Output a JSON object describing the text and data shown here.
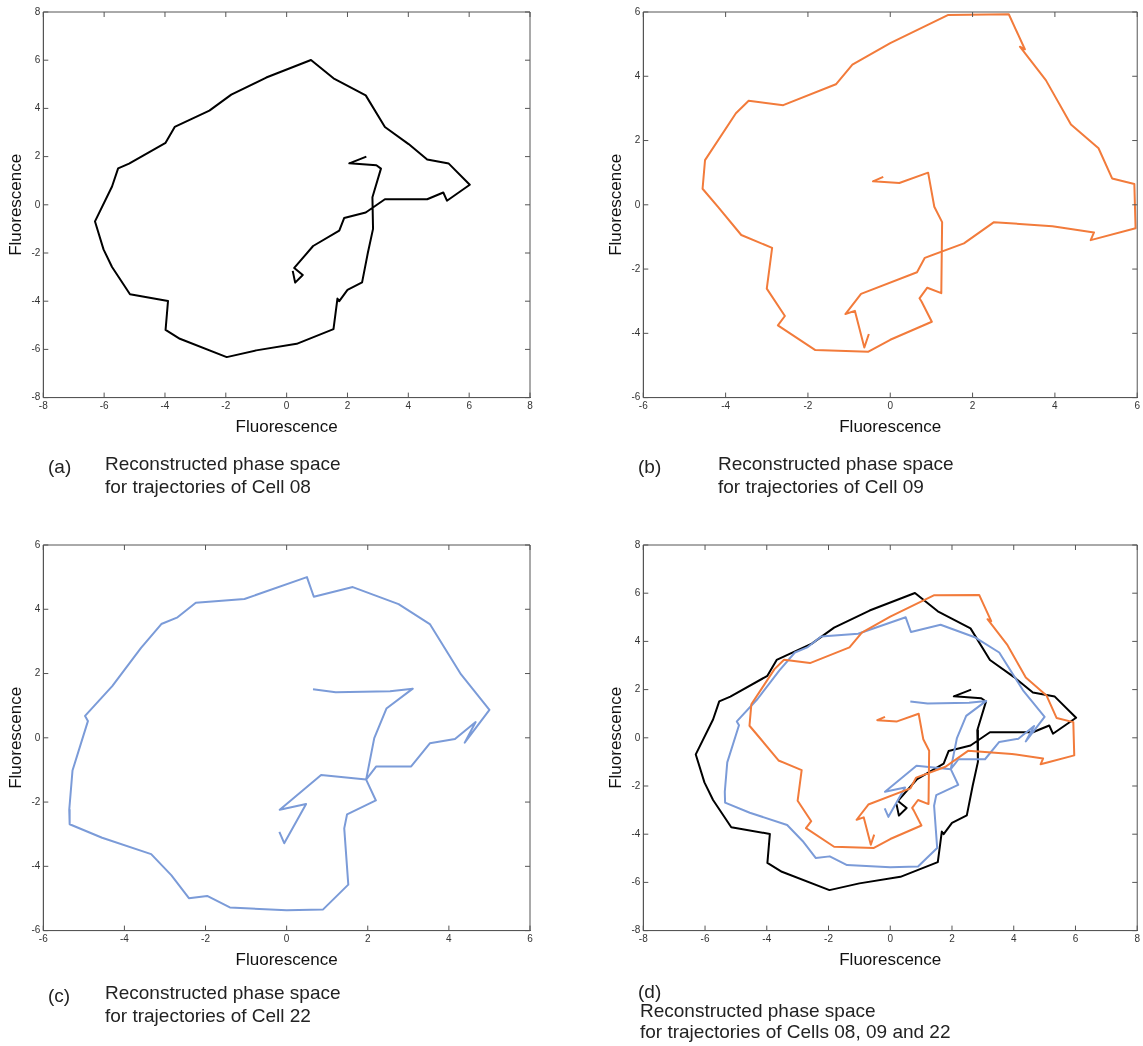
{
  "chart_data": [
    {
      "type": "line",
      "xlabel": "Fluorescence",
      "ylabel": "Fluorescence",
      "xlim": [
        -8,
        8
      ],
      "ylim": [
        -8,
        8
      ],
      "xticks": [
        -8,
        -6,
        -4,
        -2,
        0,
        2,
        4,
        6,
        8
      ],
      "yticks": [
        -8,
        -6,
        -4,
        -2,
        0,
        2,
        4,
        6,
        8
      ],
      "grid": false,
      "annotations": [
        "(a)",
        "Reconstructed phase space",
        "for trajectories of Cell 08"
      ],
      "series": [
        {
          "color": "#000000",
          "x": [
            2.62,
            2.06,
            2.95,
            3.1,
            2.82,
            2.84,
            2.67,
            2.48,
            2.0,
            1.73,
            1.67,
            1.54,
            0.33,
            -1.0,
            -1.97,
            -3.51,
            -3.98,
            -3.9,
            -5.15,
            -5.74,
            -6.02,
            -6.3,
            -5.74,
            -5.54,
            -5.18,
            -3.98,
            -3.68,
            -2.54,
            -1.82,
            -0.67,
            0.8,
            1.54,
            2.6,
            3.23,
            4.01,
            4.62,
            5.33,
            6.02,
            5.27,
            5.15,
            4.62,
            3.23,
            2.6,
            1.89,
            1.73,
            0.87,
            0.25,
            0.53,
            0.28,
            0.2
          ],
          "values": [
            2.0,
            1.72,
            1.64,
            1.5,
            0.31,
            -1.0,
            -1.99,
            -3.22,
            -3.53,
            -4.0,
            -3.89,
            -5.16,
            -5.77,
            -6.04,
            -6.32,
            -5.56,
            -5.19,
            -3.99,
            -3.71,
            -2.58,
            -1.85,
            -0.69,
            0.76,
            1.51,
            1.71,
            2.57,
            3.23,
            3.91,
            4.57,
            5.28,
            6.01,
            5.25,
            4.54,
            3.23,
            2.52,
            1.88,
            1.71,
            0.83,
            0.17,
            0.51,
            0.23,
            0.23,
            -0.32,
            -0.55,
            -1.07,
            -1.71,
            -2.62,
            -2.91,
            -3.23,
            -2.74
          ]
        }
      ]
    },
    {
      "type": "line",
      "xlabel": "Fluorescence",
      "ylabel": "Fluorescence",
      "xlim": [
        -6,
        6
      ],
      "ylim": [
        -6,
        6
      ],
      "xticks": [
        -6,
        -4,
        -2,
        0,
        2,
        4,
        6
      ],
      "yticks": [
        -6,
        -4,
        -2,
        0,
        2,
        4,
        6
      ],
      "grid": false,
      "annotations": [
        "(b)",
        "Reconstructed phase space",
        "for trajectories of Cell 09"
      ],
      "series": [
        {
          "color": "#f27b3b",
          "x": [
            -0.17,
            -0.42,
            0.22,
            0.92,
            1.07,
            1.26,
            1.24,
            0.9,
            0.71,
            0.76,
            1.01,
            0.0,
            -0.53,
            -1.82,
            -2.73,
            -2.56,
            -3.0,
            -2.87,
            -3.62,
            -4.19,
            -4.56,
            -4.5,
            -3.75,
            -3.44,
            -2.6,
            -1.32,
            -0.92,
            0.0,
            1.41,
            2.88,
            3.27,
            3.15,
            3.78,
            4.39,
            5.06,
            5.39,
            5.93,
            5.96,
            4.87,
            4.95,
            3.94,
            2.52,
            1.79,
            0.84,
            0.65,
            -0.71,
            -1.09,
            -0.86,
            -0.63,
            -0.52
          ],
          "values": [
            0.87,
            0.73,
            0.68,
            1.0,
            -0.06,
            -0.54,
            -2.75,
            -2.58,
            -2.91,
            -3.01,
            -3.64,
            -4.2,
            -4.57,
            -4.52,
            -3.75,
            -3.46,
            -2.61,
            -1.34,
            -0.94,
            -0.06,
            0.5,
            1.39,
            2.85,
            3.24,
            3.1,
            3.75,
            4.36,
            5.03,
            5.91,
            5.93,
            4.84,
            4.92,
            3.88,
            2.5,
            1.76,
            0.82,
            0.65,
            -0.73,
            -1.1,
            -0.86,
            -0.67,
            -0.54,
            -1.2,
            -1.65,
            -2.1,
            -2.77,
            -3.4,
            -3.3,
            -4.44,
            -4.02
          ]
        }
      ]
    },
    {
      "type": "line",
      "xlabel": "Fluorescence",
      "ylabel": "Fluorescence",
      "xlim": [
        -6,
        6
      ],
      "ylim": [
        -6,
        6
      ],
      "xticks": [
        -6,
        -4,
        -2,
        0,
        2,
        4,
        6
      ],
      "yticks": [
        -6,
        -4,
        -2,
        0,
        2,
        4,
        6
      ],
      "grid": false,
      "annotations": [
        "(c)",
        "Reconstructed phase space",
        "for trajectories of Cell 22"
      ],
      "series": [
        {
          "color": "#7b9bd8",
          "x": [
            0.65,
            1.21,
            2.55,
            3.11,
            2.46,
            2.16,
            1.96,
            2.21,
            3.07,
            3.53,
            4.15,
            4.66,
            4.39,
            5.0,
            4.3,
            3.53,
            2.76,
            1.63,
            0.67,
            0.5,
            -1.04,
            -2.24,
            -2.69,
            -3.09,
            -3.59,
            -4.3,
            -4.97,
            -4.9,
            -5.28,
            -5.36,
            -5.35,
            -4.55,
            -3.34,
            -2.84,
            -2.41,
            -1.96,
            -1.4,
            0.0,
            0.9,
            1.52,
            1.42,
            1.49,
            2.2,
            1.96,
            0.85,
            -0.17,
            0.48,
            -0.06,
            -0.18
          ],
          "values": [
            1.51,
            1.42,
            1.45,
            1.53,
            0.91,
            -0.01,
            -1.3,
            -0.89,
            -0.89,
            -0.17,
            -0.04,
            0.49,
            -0.15,
            0.87,
            1.97,
            3.54,
            4.16,
            4.69,
            4.39,
            5.0,
            4.32,
            4.2,
            3.75,
            3.54,
            2.8,
            1.61,
            0.68,
            0.52,
            -1.02,
            -2.24,
            -2.69,
            -3.11,
            -3.62,
            -4.28,
            -4.99,
            -4.92,
            -5.28,
            -5.37,
            -5.34,
            -4.57,
            -2.82,
            -2.38,
            -1.95,
            -1.3,
            -1.16,
            -2.24,
            -2.06,
            -3.28,
            -2.93
          ]
        }
      ]
    },
    {
      "type": "line",
      "xlabel": "Fluorescence",
      "ylabel": "Fluorescence",
      "xlim": [
        -8,
        8
      ],
      "ylim": [
        -8,
        8
      ],
      "xticks": [
        -8,
        -6,
        -4,
        -2,
        0,
        2,
        4,
        6,
        8
      ],
      "yticks": [
        -8,
        -6,
        -4,
        -2,
        0,
        2,
        4,
        6,
        8
      ],
      "grid": false,
      "annotations": [
        "(d)",
        "Reconstructed phase space",
        "for trajectories of Cells 08, 09 and 22"
      ],
      "series": [
        {
          "color": "#f27b3b",
          "x": [
            -0.17,
            -0.42,
            0.22,
            0.92,
            1.07,
            1.26,
            1.24,
            0.9,
            0.71,
            0.76,
            1.01,
            0.0,
            -0.53,
            -1.82,
            -2.73,
            -2.56,
            -3.0,
            -2.87,
            -3.62,
            -4.19,
            -4.56,
            -4.5,
            -3.75,
            -3.44,
            -2.6,
            -1.32,
            -0.92,
            0.0,
            1.41,
            2.88,
            3.27,
            3.15,
            3.78,
            4.39,
            5.06,
            5.39,
            5.93,
            5.96,
            4.87,
            4.95,
            3.94,
            2.52,
            1.79,
            0.84,
            0.65,
            -0.71,
            -1.09,
            -0.86,
            -0.63,
            -0.52
          ],
          "values": [
            0.87,
            0.73,
            0.68,
            1.0,
            -0.06,
            -0.54,
            -2.75,
            -2.58,
            -2.91,
            -3.01,
            -3.64,
            -4.2,
            -4.57,
            -4.52,
            -3.75,
            -3.46,
            -2.61,
            -1.34,
            -0.94,
            -0.06,
            0.5,
            1.39,
            2.85,
            3.24,
            3.1,
            3.75,
            4.36,
            5.03,
            5.91,
            5.93,
            4.84,
            4.92,
            3.88,
            2.5,
            1.76,
            0.82,
            0.65,
            -0.73,
            -1.1,
            -0.86,
            -0.67,
            -0.54,
            -1.2,
            -1.65,
            -2.1,
            -2.77,
            -3.4,
            -3.3,
            -4.44,
            -4.02
          ]
        },
        {
          "color": "#7b9bd8",
          "x": [
            0.65,
            1.21,
            2.55,
            3.11,
            2.46,
            2.16,
            1.96,
            2.21,
            3.07,
            3.53,
            4.15,
            4.66,
            4.39,
            5.0,
            4.3,
            3.53,
            2.76,
            1.63,
            0.67,
            0.5,
            -1.04,
            -2.24,
            -2.69,
            -3.09,
            -3.59,
            -4.3,
            -4.97,
            -4.9,
            -5.28,
            -5.36,
            -5.35,
            -4.55,
            -3.34,
            -2.84,
            -2.41,
            -1.96,
            -1.4,
            0.0,
            0.9,
            1.52,
            1.42,
            1.49,
            2.2,
            1.96,
            0.85,
            -0.17,
            0.48,
            -0.06,
            -0.18
          ],
          "values": [
            1.51,
            1.42,
            1.45,
            1.53,
            0.91,
            -0.01,
            -1.3,
            -0.89,
            -0.89,
            -0.17,
            -0.04,
            0.49,
            -0.15,
            0.87,
            1.97,
            3.54,
            4.16,
            4.69,
            4.39,
            5.0,
            4.32,
            4.2,
            3.75,
            3.54,
            2.8,
            1.61,
            0.68,
            0.52,
            -1.02,
            -2.24,
            -2.69,
            -3.11,
            -3.62,
            -4.28,
            -4.99,
            -4.92,
            -5.28,
            -5.37,
            -5.34,
            -4.57,
            -2.82,
            -2.38,
            -1.95,
            -1.3,
            -1.16,
            -2.24,
            -2.06,
            -3.28,
            -2.93
          ]
        },
        {
          "color": "#000000",
          "x": [
            2.62,
            2.06,
            2.95,
            3.1,
            2.82,
            2.84,
            2.67,
            2.48,
            2.0,
            1.73,
            1.67,
            1.54,
            0.33,
            -1.0,
            -1.97,
            -3.51,
            -3.98,
            -3.9,
            -5.15,
            -5.74,
            -6.02,
            -6.3,
            -5.74,
            -5.54,
            -5.18,
            -3.98,
            -3.68,
            -2.54,
            -1.82,
            -0.67,
            0.8,
            1.54,
            2.6,
            3.23,
            4.01,
            4.62,
            5.33,
            6.02,
            5.27,
            5.15,
            4.62,
            3.23,
            2.6,
            1.89,
            1.73,
            0.87,
            0.25,
            0.53,
            0.28,
            0.2
          ],
          "values": [
            2.0,
            1.72,
            1.64,
            1.5,
            0.31,
            -1.0,
            -1.99,
            -3.22,
            -3.53,
            -4.0,
            -3.89,
            -5.16,
            -5.77,
            -6.04,
            -6.32,
            -5.56,
            -5.19,
            -3.99,
            -3.71,
            -2.58,
            -1.85,
            -0.69,
            0.76,
            1.51,
            1.71,
            2.57,
            3.23,
            3.91,
            4.57,
            5.28,
            6.01,
            5.25,
            4.54,
            3.23,
            2.52,
            1.88,
            1.71,
            0.83,
            0.17,
            0.51,
            0.23,
            0.23,
            -0.32,
            -0.55,
            -1.07,
            -1.71,
            -2.62,
            -2.91,
            -3.23,
            -2.74
          ]
        }
      ]
    }
  ]
}
